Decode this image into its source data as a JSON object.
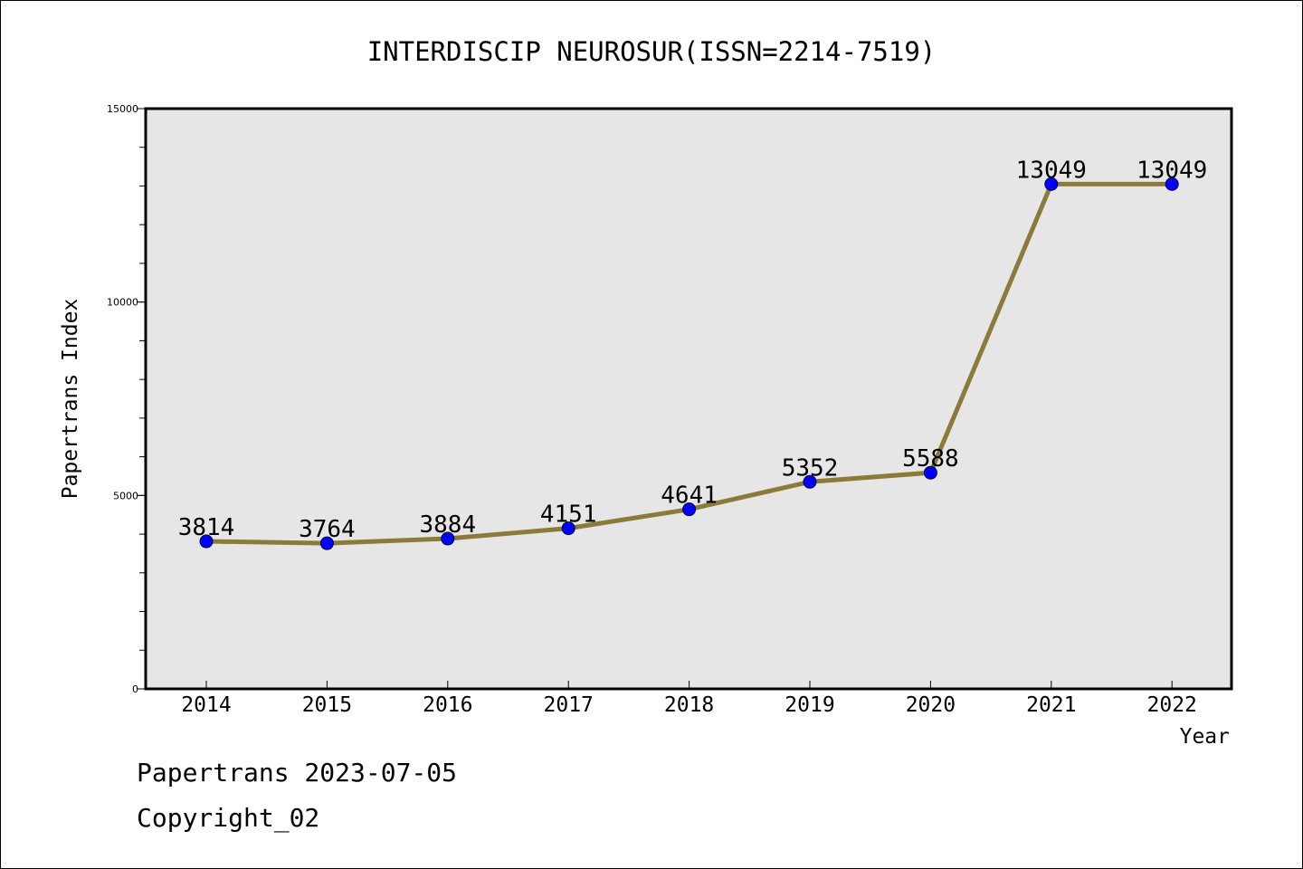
{
  "chart_data": {
    "type": "line",
    "title": "INTERDISCIP NEUROSUR(ISSN=2214-7519)",
    "xlabel": "Year",
    "ylabel": "Papertrans Index",
    "categories": [
      "2014",
      "2015",
      "2016",
      "2017",
      "2018",
      "2019",
      "2020",
      "2021",
      "2022"
    ],
    "series": [
      {
        "values": [
          3814,
          3764,
          3884,
          4151,
          4641,
          5352,
          5588,
          13049,
          13049
        ]
      }
    ],
    "data_labels": [
      "3814",
      "3764",
      "3884",
      "4151",
      "4641",
      "5352",
      "5588",
      "13049",
      "13049"
    ],
    "ylim": [
      0,
      15000
    ],
    "yticks": [
      0,
      5000,
      10000,
      15000
    ],
    "ytick_labels": [
      "0",
      "5000",
      "10000",
      "15000"
    ],
    "y_minor_step": 1000,
    "grid": false,
    "colors": {
      "line": "#8b7b3a",
      "marker": "#0000ff",
      "plot_background": "#e6e6e6",
      "axis": "#000000"
    }
  },
  "footer": {
    "date_text": "Papertrans 2023-07-05",
    "copyright_text": "Copyright_02"
  }
}
